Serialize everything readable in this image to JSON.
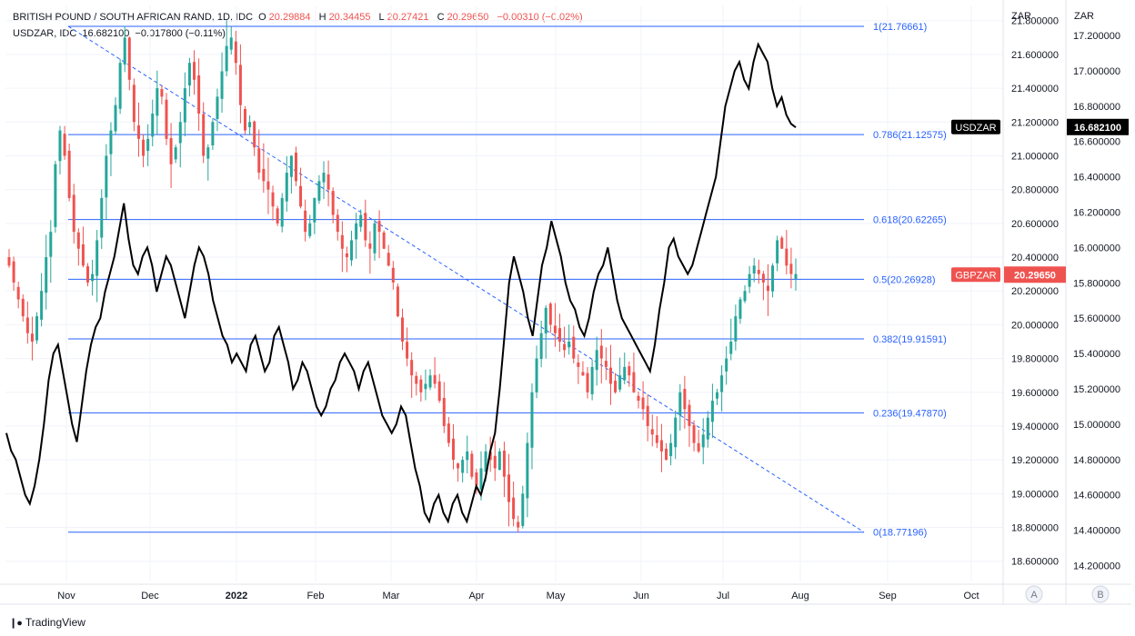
{
  "legend": {
    "main_symbol": "BRITISH POUND / SOUTH AFRICAN RAND, 1D, IDC",
    "open_label": "O",
    "open": "20.29884",
    "high_label": "H",
    "high": "20.34455",
    "low_label": "L",
    "low": "20.27421",
    "close_label": "C",
    "close": "20.29650",
    "change": "−0.00310 (−0.02%)",
    "overlay_symbol": "USDZAR, IDC",
    "overlay_value": "16.682100",
    "overlay_change": "−0.017800 (−0.11%)"
  },
  "footer": {
    "brand": "TradingView"
  },
  "colors": {
    "up": "#26a69a",
    "down": "#ef5350",
    "fib": "#2962ff",
    "overlay": "#000000",
    "trend": "#2962ff"
  },
  "chart_data": {
    "type": "candlestick",
    "x_ticks": [
      "Nov",
      "Dec",
      "2022",
      "Feb",
      "Mar",
      "Apr",
      "May",
      "Jun",
      "Jul",
      "Aug",
      "Sep",
      "Oct"
    ],
    "scale_a": {
      "label": "ZAR",
      "bottom_label": "A",
      "ticks": [
        "21.800000",
        "21.600000",
        "21.400000",
        "21.200000",
        "21.000000",
        "20.800000",
        "20.600000",
        "20.400000",
        "20.200000",
        "20.000000",
        "19.800000",
        "19.600000",
        "19.400000",
        "19.200000",
        "19.000000",
        "18.800000",
        "18.600000"
      ],
      "range": [
        18.48,
        21.89
      ]
    },
    "scale_b": {
      "label": "ZAR",
      "bottom_label": "B",
      "ticks": [
        "17.200000",
        "17.000000",
        "16.800000",
        "16.600000",
        "16.400000",
        "16.200000",
        "16.000000",
        "15.800000",
        "15.600000",
        "15.400000",
        "15.200000",
        "15.000000",
        "14.800000",
        "14.600000",
        "14.400000",
        "14.200000"
      ],
      "range": [
        14.11,
        17.37
      ]
    },
    "fib_levels": [
      {
        "label": "1(21.76661)",
        "value": 21.76661
      },
      {
        "label": "0.786(21.12575)",
        "value": 21.12575
      },
      {
        "label": "0.618(20.62265)",
        "value": 20.62265
      },
      {
        "label": "0.5(20.26928)",
        "value": 20.26928
      },
      {
        "label": "0.382(19.91591)",
        "value": 19.91591
      },
      {
        "label": "0.236(19.47870)",
        "value": 19.4787
      },
      {
        "label": "0(18.77196)",
        "value": 18.77196
      }
    ],
    "trend_line": [
      21.76661,
      18.77196
    ],
    "badges": [
      {
        "label": "USDZAR",
        "value": "16.682100",
        "scale": "B",
        "y": 16.6821
      },
      {
        "label": "GBPZAR",
        "value": "20.29650",
        "scale": "A",
        "y": 20.2965
      }
    ],
    "gbpzar_close": [
      20.35,
      20.25,
      20.15,
      20.05,
      19.95,
      19.9,
      20.05,
      20.2,
      20.4,
      20.55,
      20.95,
      21.15,
      21.0,
      20.75,
      20.55,
      20.45,
      20.35,
      20.25,
      20.3,
      20.5,
      20.75,
      21.0,
      21.15,
      21.3,
      21.55,
      21.7,
      21.45,
      21.2,
      21.1,
      21.0,
      21.1,
      21.25,
      21.4,
      21.35,
      21.1,
      20.95,
      21.05,
      21.2,
      21.4,
      21.55,
      21.45,
      21.25,
      21.0,
      21.05,
      21.2,
      21.35,
      21.5,
      21.65,
      21.7,
      21.55,
      21.3,
      21.15,
      21.2,
      21.05,
      20.9,
      20.85,
      20.8,
      20.7,
      20.6,
      20.75,
      20.9,
      21.0,
      20.85,
      20.7,
      20.55,
      20.6,
      20.75,
      20.85,
      20.9,
      20.8,
      20.65,
      20.55,
      20.45,
      20.4,
      20.5,
      20.6,
      20.65,
      20.5,
      20.45,
      20.6,
      20.55,
      20.45,
      20.35,
      20.25,
      20.05,
      19.9,
      19.8,
      19.7,
      19.65,
      19.6,
      19.65,
      19.7,
      19.65,
      19.55,
      19.4,
      19.3,
      19.2,
      19.15,
      19.2,
      19.25,
      19.1,
      19.05,
      19.15,
      19.25,
      19.2,
      19.15,
      19.25,
      19.1,
      18.95,
      18.85,
      18.8,
      19.0,
      19.3,
      19.6,
      19.8,
      19.95,
      20.1,
      20.0,
      19.95,
      19.9,
      19.85,
      19.9,
      19.8,
      19.75,
      19.7,
      19.6,
      19.75,
      19.85,
      19.8,
      19.75,
      19.65,
      19.6,
      19.7,
      19.75,
      19.7,
      19.6,
      19.55,
      19.5,
      19.4,
      19.35,
      19.3,
      19.25,
      19.2,
      19.3,
      19.45,
      19.6,
      19.5,
      19.4,
      19.3,
      19.25,
      19.35,
      19.45,
      19.55,
      19.6,
      19.7,
      19.8,
      19.9,
      20.05,
      20.15,
      20.2,
      20.3,
      20.35,
      20.3,
      20.25,
      20.2,
      20.35,
      20.5,
      20.45,
      20.35,
      20.3,
      20.3
    ],
    "usdzar_close": [
      14.95,
      14.85,
      14.8,
      14.7,
      14.6,
      14.55,
      14.65,
      14.8,
      15.0,
      15.25,
      15.4,
      15.45,
      15.3,
      15.15,
      15.0,
      14.9,
      15.1,
      15.3,
      15.45,
      15.55,
      15.6,
      15.75,
      15.85,
      15.95,
      16.1,
      16.25,
      16.05,
      15.9,
      15.85,
      15.95,
      16.0,
      15.9,
      15.75,
      15.85,
      15.95,
      15.9,
      15.8,
      15.7,
      15.6,
      15.75,
      15.9,
      16.0,
      15.95,
      15.85,
      15.7,
      15.6,
      15.5,
      15.45,
      15.35,
      15.4,
      15.35,
      15.3,
      15.45,
      15.5,
      15.4,
      15.3,
      15.35,
      15.5,
      15.55,
      15.45,
      15.35,
      15.2,
      15.25,
      15.35,
      15.3,
      15.2,
      15.1,
      15.05,
      15.1,
      15.2,
      15.25,
      15.35,
      15.4,
      15.35,
      15.3,
      15.2,
      15.3,
      15.35,
      15.25,
      15.15,
      15.05,
      15.0,
      14.95,
      15.0,
      15.1,
      15.05,
      14.9,
      14.75,
      14.65,
      14.5,
      14.45,
      14.55,
      14.6,
      14.5,
      14.45,
      14.55,
      14.6,
      14.5,
      14.45,
      14.55,
      14.65,
      14.6,
      14.7,
      14.85,
      14.95,
      15.2,
      15.5,
      15.8,
      15.95,
      15.85,
      15.75,
      15.6,
      15.5,
      15.7,
      15.9,
      16.0,
      16.15,
      16.05,
      15.95,
      15.8,
      15.7,
      15.65,
      15.55,
      15.5,
      15.6,
      15.75,
      15.85,
      15.9,
      16.0,
      15.85,
      15.7,
      15.6,
      15.55,
      15.5,
      15.45,
      15.4,
      15.35,
      15.3,
      15.45,
      15.65,
      15.8,
      16.0,
      16.05,
      15.95,
      15.9,
      15.85,
      15.9,
      16.0,
      16.1,
      16.2,
      16.3,
      16.4,
      16.6,
      16.8,
      16.9,
      17.0,
      17.05,
      16.95,
      16.9,
      17.05,
      17.15,
      17.1,
      17.05,
      16.9,
      16.8,
      16.85,
      16.75,
      16.7,
      16.68
    ]
  }
}
